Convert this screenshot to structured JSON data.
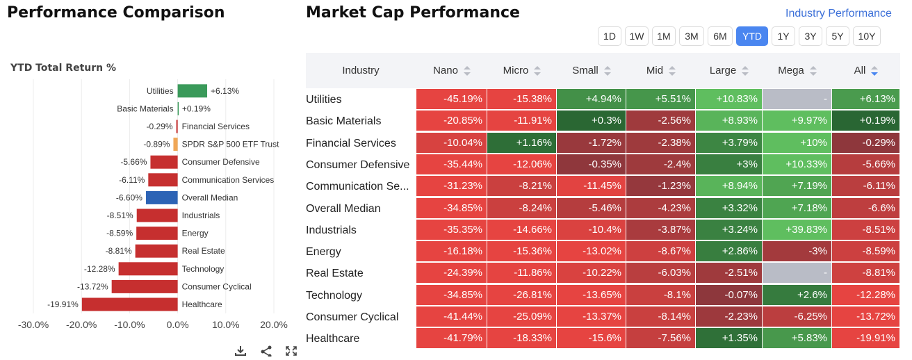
{
  "left_title": "Performance Comparison",
  "right_title": "Market Cap Performance",
  "industry_link": "Industry Performance",
  "toolbar_icons": [
    "download-icon",
    "share-icon",
    "expand-icon"
  ],
  "timeframes": [
    "1D",
    "1W",
    "1M",
    "3M",
    "6M",
    "YTD",
    "1Y",
    "3Y",
    "5Y",
    "10Y"
  ],
  "active_timeframe": "YTD",
  "colors": {
    "positive": "#3a9a5a",
    "negative": "#c62f2f",
    "neutral": "#f0a757",
    "median": "#2c63b5",
    "cell_empty": "#b9bcc6",
    "link": "#3b6fd8",
    "active_button": "#4a86f0"
  },
  "chart_data": {
    "type": "bar",
    "orientation": "horizontal",
    "ylabel": "YTD Total Return %",
    "categories": [
      "Utilities",
      "Basic Materials",
      "Financial Services",
      "SPDR S&P 500 ETF Trust",
      "Consumer Defensive",
      "Communication Services",
      "Overall Median",
      "Industrials",
      "Energy",
      "Real Estate",
      "Technology",
      "Consumer Cyclical",
      "Healthcare"
    ],
    "values": [
      6.13,
      0.19,
      -0.29,
      -0.89,
      -5.66,
      -6.11,
      -6.6,
      -8.51,
      -8.59,
      -8.81,
      -12.28,
      -13.72,
      -19.91
    ],
    "value_labels": [
      "+6.13%",
      "+0.19%",
      "-0.29%",
      "-0.89%",
      "-5.66%",
      "-6.11%",
      "-6.60%",
      "-8.51%",
      "-8.59%",
      "-8.81%",
      "-12.28%",
      "-13.72%",
      "-19.91%"
    ],
    "xlim": [
      -30,
      20
    ],
    "xticks": [
      -30,
      -20,
      -10,
      0,
      10,
      20
    ],
    "xtick_labels": [
      "-30.0%",
      "-20.0%",
      "-10.0%",
      "0.0%",
      "10.0%",
      "20.0%"
    ],
    "highlight": {
      "SPDR S&P 500 ETF Trust": "neutral",
      "Overall Median": "median"
    },
    "grid": true
  },
  "table": {
    "columns": [
      "Industry",
      "Nano",
      "Micro",
      "Small",
      "Mid",
      "Large",
      "Mega",
      "All"
    ],
    "sorted_column": "All",
    "rows": [
      {
        "industry": "Utilities",
        "values": [
          -45.19,
          -15.38,
          4.94,
          5.51,
          10.83,
          null,
          6.13
        ],
        "labels": [
          "-45.19%",
          "-15.38%",
          "+4.94%",
          "+5.51%",
          "+10.83%",
          "-",
          "+6.13%"
        ]
      },
      {
        "industry": "Basic Materials",
        "values": [
          -20.85,
          -11.91,
          0.3,
          -2.56,
          8.93,
          9.97,
          0.19
        ],
        "labels": [
          "-20.85%",
          "-11.91%",
          "+0.3%",
          "-2.56%",
          "+8.93%",
          "+9.97%",
          "+0.19%"
        ]
      },
      {
        "industry": "Financial Services",
        "values": [
          -10.04,
          1.16,
          -1.72,
          -2.38,
          3.79,
          10,
          -0.29
        ],
        "labels": [
          "-10.04%",
          "+1.16%",
          "-1.72%",
          "-2.38%",
          "+3.79%",
          "+10%",
          "-0.29%"
        ]
      },
      {
        "industry": "Consumer Defensive",
        "values": [
          -35.44,
          -12.06,
          -0.35,
          -2.4,
          3,
          10.33,
          -5.66
        ],
        "labels": [
          "-35.44%",
          "-12.06%",
          "-0.35%",
          "-2.4%",
          "+3%",
          "+10.33%",
          "-5.66%"
        ]
      },
      {
        "industry": "Communication Se...",
        "values": [
          -31.23,
          -8.21,
          -11.45,
          -1.23,
          8.94,
          7.19,
          -6.11
        ],
        "labels": [
          "-31.23%",
          "-8.21%",
          "-11.45%",
          "-1.23%",
          "+8.94%",
          "+7.19%",
          "-6.11%"
        ]
      },
      {
        "industry": "Overall Median",
        "values": [
          -34.85,
          -8.24,
          -5.46,
          -4.23,
          3.32,
          7.18,
          -6.6
        ],
        "labels": [
          "-34.85%",
          "-8.24%",
          "-5.46%",
          "-4.23%",
          "+3.32%",
          "+7.18%",
          "-6.6%"
        ]
      },
      {
        "industry": "Industrials",
        "values": [
          -35.35,
          -14.66,
          -10.4,
          -3.87,
          3.24,
          39.83,
          -8.51
        ],
        "labels": [
          "-35.35%",
          "-14.66%",
          "-10.4%",
          "-3.87%",
          "+3.24%",
          "+39.83%",
          "-8.51%"
        ]
      },
      {
        "industry": "Energy",
        "values": [
          -16.18,
          -15.36,
          -13.02,
          -8.67,
          2.86,
          -3,
          -8.59
        ],
        "labels": [
          "-16.18%",
          "-15.36%",
          "-13.02%",
          "-8.67%",
          "+2.86%",
          "-3%",
          "-8.59%"
        ]
      },
      {
        "industry": "Real Estate",
        "values": [
          -24.39,
          -11.86,
          -10.22,
          -6.03,
          -2.51,
          null,
          -8.81
        ],
        "labels": [
          "-24.39%",
          "-11.86%",
          "-10.22%",
          "-6.03%",
          "-2.51%",
          "-",
          "-8.81%"
        ]
      },
      {
        "industry": "Technology",
        "values": [
          -34.85,
          -26.81,
          -13.65,
          -8.1,
          -0.07,
          2.6,
          -12.28
        ],
        "labels": [
          "-34.85%",
          "-26.81%",
          "-13.65%",
          "-8.1%",
          "-0.07%",
          "+2.6%",
          "-12.28%"
        ]
      },
      {
        "industry": "Consumer Cyclical",
        "values": [
          -41.44,
          -25.09,
          -13.37,
          -8.14,
          -2.23,
          -6.25,
          -13.72
        ],
        "labels": [
          "-41.44%",
          "-25.09%",
          "-13.37%",
          "-8.14%",
          "-2.23%",
          "-6.25%",
          "-13.72%"
        ]
      },
      {
        "industry": "Healthcare",
        "values": [
          -41.79,
          -18.33,
          -15.6,
          -7.56,
          1.35,
          5.83,
          -19.91
        ],
        "labels": [
          "-41.79%",
          "-18.33%",
          "-15.6%",
          "-7.56%",
          "+1.35%",
          "+5.83%",
          "-19.91%"
        ]
      }
    ]
  }
}
